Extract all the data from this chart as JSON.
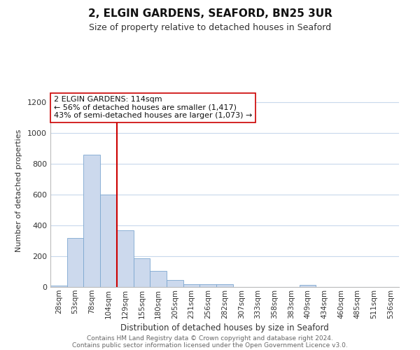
{
  "title": "2, ELGIN GARDENS, SEAFORD, BN25 3UR",
  "subtitle": "Size of property relative to detached houses in Seaford",
  "xlabel": "Distribution of detached houses by size in Seaford",
  "ylabel": "Number of detached properties",
  "bar_labels": [
    "28sqm",
    "53sqm",
    "78sqm",
    "104sqm",
    "129sqm",
    "155sqm",
    "180sqm",
    "205sqm",
    "231sqm",
    "256sqm",
    "282sqm",
    "307sqm",
    "333sqm",
    "358sqm",
    "383sqm",
    "409sqm",
    "434sqm",
    "460sqm",
    "485sqm",
    "511sqm",
    "536sqm"
  ],
  "bar_values": [
    10,
    320,
    860,
    600,
    370,
    185,
    105,
    45,
    20,
    20,
    20,
    0,
    0,
    0,
    0,
    15,
    0,
    0,
    0,
    0,
    0
  ],
  "bar_color": "#ccd9ed",
  "bar_edge_color": "#7da8d0",
  "vline_color": "#cc0000",
  "annotation_text": "2 ELGIN GARDENS: 114sqm\n← 56% of detached houses are smaller (1,417)\n43% of semi-detached houses are larger (1,073) →",
  "annotation_box_color": "#ffffff",
  "annotation_box_edge": "#cc0000",
  "ylim": [
    0,
    1250
  ],
  "yticks": [
    0,
    200,
    400,
    600,
    800,
    1000,
    1200
  ],
  "footer_line1": "Contains HM Land Registry data © Crown copyright and database right 2024.",
  "footer_line2": "Contains public sector information licensed under the Open Government Licence v3.0.",
  "background_color": "#ffffff",
  "grid_color": "#c8d8ec",
  "title_fontsize": 11,
  "subtitle_fontsize": 9,
  "ylabel_fontsize": 8,
  "xlabel_fontsize": 8.5,
  "tick_fontsize": 7.5,
  "annotation_fontsize": 8,
  "footer_fontsize": 6.5
}
